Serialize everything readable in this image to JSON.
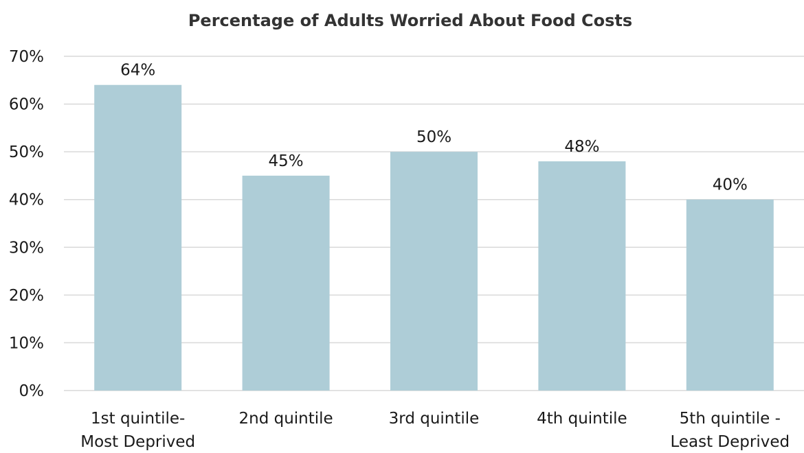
{
  "chart_data": {
    "type": "bar",
    "title": "Percentage of Adults Worried About Food Costs",
    "xlabel": "",
    "ylabel": "",
    "categories": [
      [
        "1st quintile-",
        "Most Deprived"
      ],
      [
        "2nd quintile"
      ],
      [
        "3rd quintile"
      ],
      [
        "4th quintile"
      ],
      [
        "5th quintile -",
        "Least Deprived"
      ]
    ],
    "values": [
      64,
      45,
      50,
      48,
      40
    ],
    "data_labels": [
      "64%",
      "45%",
      "50%",
      "48%",
      "40%"
    ],
    "ylim": [
      0,
      70
    ],
    "yticks": [
      0,
      10,
      20,
      30,
      40,
      50,
      60,
      70
    ],
    "ytick_labels": [
      "0%",
      "10%",
      "20%",
      "30%",
      "40%",
      "50%",
      "60%",
      "70%"
    ],
    "grid": true,
    "legend": "none",
    "bar_color": "#aecdd7",
    "gridline_color": "#d9d9d9"
  }
}
